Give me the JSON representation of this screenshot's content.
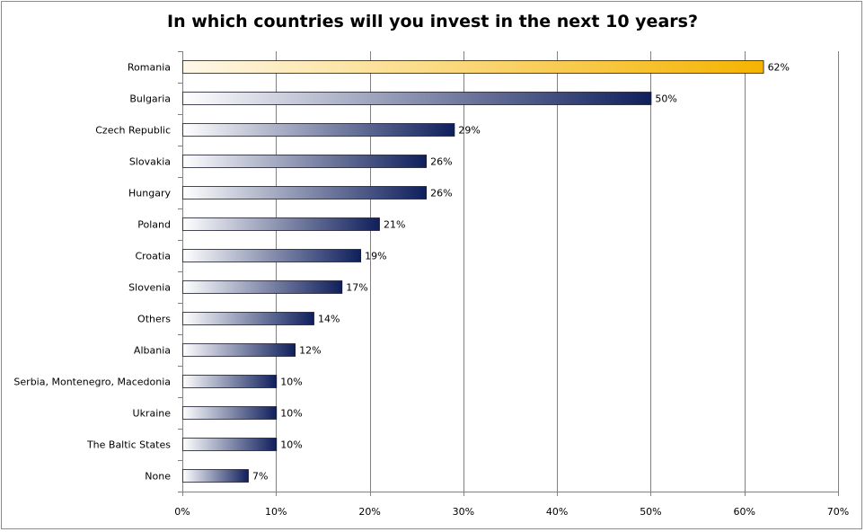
{
  "chart_data": {
    "type": "bar",
    "orientation": "horizontal",
    "title": "In which countries will you invest in the next 10 years?",
    "xlabel": "",
    "ylabel": "",
    "xlim": [
      0,
      70
    ],
    "x_ticks": [
      0,
      10,
      20,
      30,
      40,
      50,
      60,
      70
    ],
    "tick_suffix": "%",
    "grid": true,
    "legend": "none",
    "categories": [
      "Romania",
      "Bulgaria",
      "Czech Republic",
      "Slovakia",
      "Hungary",
      "Poland",
      "Croatia",
      "Slovenia",
      "Others",
      "Albania",
      "Serbia, Montenegro, Macedonia",
      "Ukraine",
      "The Baltic States",
      "None"
    ],
    "values": [
      62,
      50,
      29,
      26,
      26,
      21,
      19,
      17,
      14,
      12,
      10,
      10,
      10,
      7
    ],
    "value_labels": [
      "62%",
      "50%",
      "29%",
      "26%",
      "26%",
      "21%",
      "19%",
      "17%",
      "14%",
      "12%",
      "10%",
      "10%",
      "10%",
      "7%"
    ],
    "highlight_index": 0,
    "colors": {
      "highlight_start": "#fff8e8",
      "highlight_end": "#f5b400",
      "bar_start": "#ffffff",
      "bar_end": "#0f1f5c",
      "grid": "#808080",
      "axis": "#808080"
    }
  }
}
